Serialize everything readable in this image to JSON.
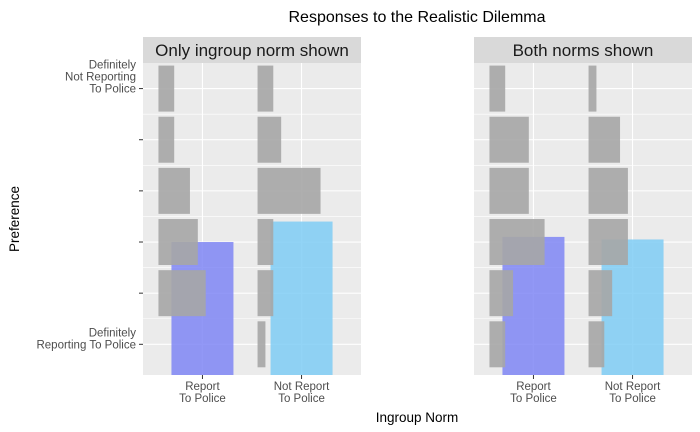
{
  "chart_data": {
    "type": "bar",
    "title": "Responses to the Realistic Dilemma",
    "xlabel": "Ingroup Norm",
    "ylabel": "Preference",
    "facets": [
      "Only ingroup norm shown",
      "Both norms shown"
    ],
    "categories": [
      "Report\nTo Police",
      "Not Report\nTo Police"
    ],
    "y_levels": 6,
    "y_tick_labels": [
      "Definitely\nReporting To Police",
      "",
      "",
      "",
      "",
      "Definitely\nNot Reporting\nTo Police"
    ],
    "colors": {
      "panel_bg": "#ebebeb",
      "grid": "#ffffff",
      "strip_bg": "#d9d9d9",
      "report_bar": "#7f86f4",
      "not_report_bar": "#7fcdf4",
      "response_bar": "#a6a6a6"
    },
    "norm_bars": [
      {
        "facet": 0,
        "category": 0,
        "value": 3.0
      },
      {
        "facet": 0,
        "category": 1,
        "value": 3.4
      },
      {
        "facet": 1,
        "category": 0,
        "value": 3.1
      },
      {
        "facet": 1,
        "category": 1,
        "value": 3.05
      }
    ],
    "response_distribution": [
      {
        "facet": 0,
        "category": 0,
        "proportions": [
          0.0,
          0.12,
          0.1,
          0.08,
          0.04,
          0.04
        ]
      },
      {
        "facet": 0,
        "category": 1,
        "proportions": [
          0.02,
          0.04,
          0.04,
          0.16,
          0.06,
          0.04
        ]
      },
      {
        "facet": 1,
        "category": 0,
        "proportions": [
          0.04,
          0.06,
          0.14,
          0.1,
          0.1,
          0.04
        ]
      },
      {
        "facet": 1,
        "category": 1,
        "proportions": [
          0.04,
          0.06,
          0.1,
          0.1,
          0.08,
          0.02
        ]
      }
    ],
    "response_max_proportion": 0.16,
    "grid": true
  }
}
